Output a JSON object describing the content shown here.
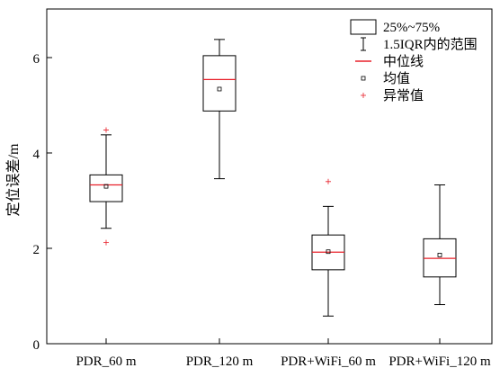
{
  "chart_data": {
    "type": "boxplot",
    "title": "",
    "xlabel": "",
    "ylabel": "定位误差/m",
    "ylim": [
      0,
      7
    ],
    "yticks": [
      "0",
      "2",
      "4",
      "6"
    ],
    "grid": false,
    "legend_position": "top-right",
    "legend": {
      "box": "25%~75%",
      "whisker": "1.5IQR内的范围",
      "median": "中位线",
      "mean": "均值",
      "outlier": "异常值"
    },
    "categories": [
      "PDR_60 m",
      "PDR_120 m",
      "PDR+WiFi_60 m",
      "PDR+WiFi_120 m"
    ],
    "boxes": [
      {
        "label": "PDR_60 m",
        "whisker_low": 2.42,
        "q1": 2.98,
        "median": 3.33,
        "q3": 3.54,
        "whisker_high": 4.38,
        "mean": 3.3,
        "outliers": [
          2.12,
          4.48
        ]
      },
      {
        "label": "PDR_120 m",
        "whisker_low": 3.46,
        "q1": 4.88,
        "median": 5.54,
        "q3": 6.04,
        "whisker_high": 6.38,
        "mean": 5.34,
        "outliers": []
      },
      {
        "label": "PDR+WiFi_60 m",
        "whisker_low": 0.58,
        "q1": 1.55,
        "median": 1.92,
        "q3": 2.28,
        "whisker_high": 2.88,
        "mean": 1.93,
        "outliers": [
          3.4
        ]
      },
      {
        "label": "PDR+WiFi_120 m",
        "whisker_low": 0.82,
        "q1": 1.4,
        "median": 1.79,
        "q3": 2.2,
        "whisker_high": 3.33,
        "mean": 1.86,
        "outliers": []
      }
    ],
    "colors": {
      "box": "#000000",
      "median": "#e8202a",
      "mean": "#000000",
      "outlier": "#e8202a"
    }
  }
}
